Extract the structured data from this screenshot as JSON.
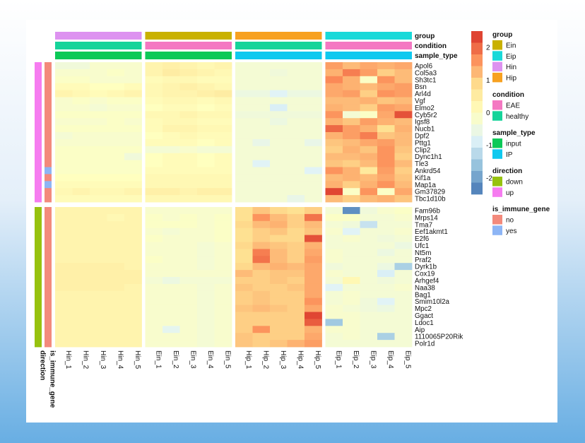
{
  "chart_data": {
    "type": "heatmap",
    "columns": [
      "Hin_1",
      "Hin_2",
      "Hin_3",
      "Hin_4",
      "Hin_5",
      "Ein_1",
      "Ein_2",
      "Ein_3",
      "Ein_4",
      "Ein_5",
      "Hip_1",
      "Hip_2",
      "Hip_3",
      "Hip_4",
      "Hip_5",
      "Eip_1",
      "Eip_2",
      "Eip_3",
      "Eip_4",
      "Eip_5"
    ],
    "column_groups": [
      "Hin",
      "Ein",
      "Hip",
      "Eip"
    ],
    "rows": [
      "Apol6",
      "Col5a3",
      "Sh3tc1",
      "Bsn",
      "Arl4d",
      "Vgf",
      "Elmo2",
      "Cyb5r2",
      "Igsf8",
      "Nucb1",
      "Dpf2",
      "Pttg1",
      "Clip2",
      "Dync1h1",
      "Tle3",
      "Ankrd54",
      "Kif1a",
      "Map1a",
      "Gm37829",
      "Tbc1d10b",
      "Fam96b",
      "Mrps14",
      "Tma7",
      "Eef1akmt1",
      "E2f6",
      "Ufc1",
      "Nt5m",
      "Praf2",
      "Dyrk1b",
      "Cox19",
      "Arhgef4",
      "Naa38",
      "Bag1",
      "Smim10l2a",
      "Mpc2",
      "Ggact",
      "Ldoc1",
      "Aip",
      "1110065P20Rik",
      "Polr1d"
    ],
    "row_direction": [
      "up",
      "up",
      "up",
      "up",
      "up",
      "up",
      "up",
      "up",
      "up",
      "up",
      "up",
      "up",
      "up",
      "up",
      "up",
      "up",
      "up",
      "up",
      "up",
      "up",
      "down",
      "down",
      "down",
      "down",
      "down",
      "down",
      "down",
      "down",
      "down",
      "down",
      "down",
      "down",
      "down",
      "down",
      "down",
      "down",
      "down",
      "down",
      "down",
      "down"
    ],
    "row_is_immune_gene": [
      "no",
      "no",
      "no",
      "no",
      "no",
      "no",
      "no",
      "no",
      "no",
      "no",
      "no",
      "no",
      "no",
      "no",
      "no",
      "yes",
      "no",
      "yes",
      "no",
      "no",
      "no",
      "no",
      "no",
      "no",
      "no",
      "no",
      "no",
      "no",
      "no",
      "no",
      "no",
      "no",
      "no",
      "no",
      "no",
      "no",
      "no",
      "no",
      "no",
      "no"
    ],
    "column_annotation_labels": [
      "group",
      "condition",
      "sample_type"
    ],
    "row_annotation_labels": [
      "direction",
      "is_immune_gene"
    ],
    "color_scale": {
      "min": -2.5,
      "max": 2.5,
      "ticks": [
        2,
        1,
        0,
        -1,
        -2
      ],
      "colors": [
        "#4575b4",
        "#91bfdb",
        "#e0f3f8",
        "#ffffbf",
        "#fee090",
        "#fc8d59",
        "#d73027"
      ]
    },
    "values": [
      [
        -0.4,
        -0.4,
        -0.2,
        -0.2,
        -0.2,
        0.3,
        0.4,
        0.3,
        0.2,
        0.3,
        -0.3,
        -0.3,
        -0.3,
        -0.3,
        -0.3,
        1.5,
        1.2,
        1.4,
        1.3,
        1.4
      ],
      [
        -0.2,
        -0.2,
        -0.2,
        -0.1,
        -0.2,
        0.3,
        0.5,
        0.4,
        0.3,
        0.2,
        -0.3,
        -0.3,
        -0.4,
        -0.3,
        -0.3,
        1.3,
        1.8,
        1.5,
        1.0,
        1.2
      ],
      [
        -0.1,
        -0.1,
        -0.2,
        -0.2,
        -0.2,
        0.1,
        0.2,
        0.2,
        0.1,
        0.1,
        -0.3,
        -0.3,
        -0.3,
        -0.3,
        -0.3,
        1.7,
        1.3,
        -0.1,
        1.6,
        1.2
      ],
      [
        0.1,
        0.1,
        0.0,
        0.0,
        0.1,
        0.2,
        0.3,
        0.4,
        0.3,
        0.2,
        -0.3,
        -0.3,
        -0.3,
        -0.3,
        -0.3,
        1.4,
        1.3,
        1.2,
        1.4,
        1.5
      ],
      [
        0.3,
        0.2,
        0.1,
        0.2,
        0.3,
        0.2,
        0.3,
        0.3,
        0.4,
        0.5,
        -0.5,
        -0.5,
        -0.8,
        -0.5,
        -0.5,
        1.4,
        1.5,
        1.0,
        1.6,
        1.5
      ],
      [
        -0.2,
        -0.1,
        -0.2,
        -0.1,
        -0.1,
        0.1,
        0.2,
        0.2,
        0.1,
        0.2,
        -0.3,
        -0.3,
        -0.3,
        -0.3,
        -0.3,
        1.2,
        1.2,
        1.3,
        1.1,
        1.2
      ],
      [
        -0.2,
        -0.2,
        -0.3,
        -0.2,
        -0.2,
        0.0,
        0.1,
        0.1,
        0.0,
        0.1,
        -0.3,
        -0.3,
        -0.9,
        -0.3,
        -0.3,
        1.3,
        1.2,
        1.0,
        1.5,
        1.4
      ],
      [
        -0.1,
        -0.1,
        -0.1,
        -0.1,
        -0.1,
        0.2,
        0.2,
        0.3,
        0.2,
        0.2,
        -0.4,
        -0.4,
        -0.4,
        -0.4,
        -0.4,
        1.6,
        -0.3,
        -0.1,
        1.4,
        2.2
      ],
      [
        -0.2,
        -0.2,
        -0.2,
        -0.1,
        -0.2,
        0.1,
        0.2,
        0.2,
        0.1,
        0.1,
        -0.3,
        -0.3,
        -0.5,
        -0.3,
        -0.3,
        1.3,
        1.1,
        1.5,
        1.3,
        1.2
      ],
      [
        -0.1,
        -0.1,
        -0.1,
        -0.1,
        -0.1,
        0.1,
        0.3,
        0.3,
        0.2,
        0.2,
        -0.3,
        -0.3,
        -0.3,
        -0.3,
        -0.3,
        2.0,
        1.5,
        1.3,
        0.8,
        1.3
      ],
      [
        -0.3,
        -0.2,
        -0.2,
        -0.2,
        -0.2,
        0.0,
        0.1,
        0.2,
        0.1,
        0.1,
        -0.3,
        -0.3,
        -0.3,
        -0.3,
        -0.3,
        1.3,
        1.5,
        1.8,
        1.1,
        1.2
      ],
      [
        -0.2,
        -0.2,
        -0.2,
        -0.2,
        -0.2,
        0.1,
        0.1,
        0.1,
        0.0,
        0.1,
        -0.3,
        -0.6,
        -0.3,
        -0.3,
        -0.6,
        1.1,
        1.2,
        1.4,
        1.5,
        1.2
      ],
      [
        -0.1,
        -0.1,
        -0.1,
        -0.1,
        -0.1,
        -0.3,
        -0.3,
        -0.2,
        -0.3,
        -0.3,
        -0.3,
        -0.3,
        -0.3,
        -0.3,
        -0.3,
        1.0,
        1.3,
        1.1,
        1.6,
        1.1
      ],
      [
        -0.1,
        -0.1,
        -0.1,
        -0.1,
        -0.4,
        0.0,
        0.1,
        0.1,
        0.0,
        0.1,
        -0.3,
        -0.3,
        -0.3,
        -0.3,
        -0.3,
        1.2,
        1.2,
        1.3,
        1.6,
        1.0
      ],
      [
        -0.1,
        -0.1,
        -0.1,
        -0.1,
        -0.1,
        0.0,
        0.1,
        0.1,
        0.0,
        0.1,
        -0.3,
        -0.8,
        -0.3,
        -0.3,
        -0.3,
        1.1,
        1.0,
        1.2,
        1.6,
        1.2
      ],
      [
        -0.1,
        -0.1,
        -0.1,
        -0.1,
        -0.1,
        0.1,
        0.1,
        0.1,
        0.1,
        0.1,
        -0.3,
        -0.3,
        -0.3,
        -0.3,
        -0.8,
        1.6,
        1.3,
        0.6,
        1.5,
        1.0
      ],
      [
        0.0,
        0.0,
        0.0,
        0.0,
        0.0,
        0.2,
        0.2,
        0.2,
        0.2,
        0.2,
        -0.3,
        -0.3,
        -0.3,
        -0.3,
        -0.3,
        1.2,
        1.3,
        1.2,
        1.4,
        1.1
      ],
      [
        0.1,
        0.1,
        0.1,
        0.1,
        0.1,
        0.2,
        0.2,
        0.2,
        0.2,
        0.2,
        -0.3,
        -0.3,
        -0.3,
        -0.3,
        -0.3,
        1.3,
        1.0,
        1.3,
        1.6,
        1.2
      ],
      [
        0.2,
        0.3,
        0.2,
        0.2,
        0.3,
        0.4,
        0.4,
        0.3,
        0.4,
        0.4,
        -0.3,
        -0.3,
        -0.3,
        -0.3,
        -0.3,
        2.3,
        -0.1,
        1.6,
        -0.1,
        1.4
      ],
      [
        0.1,
        0.1,
        0.1,
        0.1,
        0.1,
        0.2,
        0.2,
        0.2,
        0.2,
        0.2,
        -0.3,
        -0.3,
        -0.3,
        -0.6,
        -0.3,
        1.2,
        1.0,
        1.2,
        1.3,
        1.1
      ],
      [
        0.3,
        0.3,
        0.3,
        0.3,
        0.3,
        -0.2,
        -0.2,
        -0.2,
        -0.2,
        -0.2,
        0.8,
        1.1,
        0.9,
        0.8,
        1.0,
        -0.3,
        -2.2,
        -0.4,
        -0.2,
        -0.1
      ],
      [
        0.3,
        0.3,
        0.3,
        0.2,
        0.3,
        -0.1,
        -0.2,
        -0.1,
        -0.2,
        -0.1,
        0.8,
        1.6,
        1.2,
        1.0,
        1.9,
        -0.1,
        -0.1,
        -0.3,
        -0.3,
        -0.2
      ],
      [
        0.3,
        0.3,
        0.3,
        0.3,
        0.3,
        -0.1,
        -0.1,
        -0.1,
        -0.2,
        -0.1,
        0.9,
        1.2,
        1.3,
        1.0,
        1.2,
        -0.3,
        -0.4,
        -1.1,
        -0.3,
        -0.3
      ],
      [
        0.3,
        0.3,
        0.3,
        0.3,
        0.3,
        -0.2,
        -0.3,
        -0.2,
        -0.2,
        -0.1,
        0.8,
        1.0,
        1.1,
        0.9,
        1.1,
        -0.2,
        -0.8,
        -0.3,
        -0.3,
        -0.2
      ],
      [
        0.3,
        0.3,
        0.3,
        0.3,
        0.3,
        -0.1,
        -0.2,
        -0.2,
        -0.2,
        -0.1,
        0.8,
        1.0,
        0.9,
        0.9,
        2.2,
        -0.3,
        -0.2,
        -0.3,
        -0.4,
        -0.3
      ],
      [
        0.3,
        0.3,
        0.3,
        0.3,
        0.3,
        -0.2,
        -0.2,
        -0.2,
        -0.3,
        -0.2,
        0.9,
        1.2,
        1.1,
        1.0,
        1.3,
        -0.3,
        -0.3,
        -0.3,
        -0.3,
        -0.5
      ],
      [
        0.3,
        0.3,
        0.3,
        0.3,
        0.3,
        -0.2,
        -0.2,
        -0.2,
        -0.3,
        -0.2,
        0.8,
        1.8,
        1.2,
        1.0,
        1.4,
        -0.2,
        -0.3,
        -0.3,
        -0.5,
        -0.3
      ],
      [
        0.3,
        0.3,
        0.3,
        0.3,
        0.3,
        -0.1,
        -0.2,
        -0.2,
        -0.3,
        -0.2,
        0.8,
        1.9,
        1.2,
        1.0,
        1.5,
        -0.2,
        -0.3,
        -0.3,
        -0.3,
        -0.3
      ],
      [
        0.4,
        0.4,
        0.4,
        0.4,
        0.3,
        -0.2,
        -0.2,
        -0.2,
        -0.3,
        -0.2,
        0.9,
        1.2,
        1.3,
        1.2,
        1.4,
        -0.4,
        -0.3,
        -0.3,
        -0.5,
        -1.4
      ],
      [
        0.4,
        0.4,
        0.4,
        0.4,
        0.4,
        -0.2,
        -0.2,
        -0.2,
        -0.2,
        -0.2,
        1.2,
        1.0,
        1.1,
        1.1,
        1.4,
        -0.2,
        -0.3,
        -0.3,
        -0.9,
        -0.3
      ],
      [
        0.4,
        0.4,
        0.4,
        0.4,
        0.4,
        -0.3,
        -0.5,
        -0.3,
        -0.3,
        -0.3,
        1.0,
        1.0,
        1.1,
        1.0,
        1.4,
        -0.3,
        0.2,
        -0.3,
        -0.4,
        -0.3
      ],
      [
        0.4,
        0.4,
        0.4,
        0.4,
        0.3,
        -0.2,
        -0.2,
        -0.2,
        -0.3,
        -0.2,
        1.1,
        1.0,
        1.0,
        1.1,
        1.4,
        -0.8,
        -0.3,
        -0.3,
        -0.3,
        -0.2
      ],
      [
        0.3,
        0.3,
        0.3,
        0.3,
        0.3,
        -0.2,
        -0.2,
        -0.2,
        -0.3,
        -0.2,
        1.0,
        1.1,
        1.0,
        1.0,
        1.4,
        -0.3,
        -0.2,
        -0.3,
        -0.3,
        -0.3
      ],
      [
        0.3,
        0.3,
        0.3,
        0.3,
        0.3,
        -0.2,
        -0.2,
        -0.2,
        -0.3,
        -0.2,
        1.0,
        1.1,
        1.0,
        1.0,
        1.6,
        -0.3,
        -0.2,
        -0.4,
        -0.8,
        -0.3
      ],
      [
        0.3,
        0.3,
        0.3,
        0.3,
        0.3,
        -0.2,
        -0.2,
        -0.2,
        -0.3,
        -0.2,
        1.1,
        1.2,
        1.1,
        1.0,
        1.4,
        -0.2,
        -0.3,
        -0.4,
        -0.5,
        -0.3
      ],
      [
        0.3,
        0.3,
        0.3,
        0.3,
        0.3,
        -0.2,
        -0.2,
        -0.2,
        -0.3,
        -0.2,
        1.0,
        1.0,
        1.0,
        1.0,
        2.3,
        -0.2,
        -0.2,
        -0.3,
        -0.3,
        -0.3
      ],
      [
        0.3,
        0.3,
        0.3,
        0.3,
        0.3,
        -0.2,
        -0.2,
        -0.2,
        -0.3,
        -0.2,
        1.0,
        1.0,
        1.0,
        1.0,
        2.1,
        -1.5,
        -0.2,
        -0.3,
        -0.3,
        -0.3
      ],
      [
        0.3,
        0.3,
        0.3,
        0.3,
        0.3,
        -0.2,
        -0.7,
        -0.2,
        -0.3,
        -0.2,
        1.0,
        1.6,
        1.0,
        1.0,
        1.3,
        -0.2,
        -0.2,
        -0.3,
        -0.3,
        -0.3
      ],
      [
        0.3,
        0.3,
        0.3,
        0.3,
        0.3,
        -0.2,
        -0.2,
        -0.2,
        -0.3,
        -0.2,
        1.1,
        1.0,
        1.0,
        1.0,
        1.4,
        -0.3,
        -0.2,
        -0.3,
        -1.4,
        -0.3
      ],
      [
        0.3,
        0.3,
        0.3,
        0.3,
        0.3,
        -0.2,
        -0.2,
        -0.2,
        -0.3,
        -0.2,
        1.1,
        1.0,
        1.1,
        1.3,
        1.5,
        -0.3,
        -0.3,
        -0.3,
        -0.3,
        -0.3
      ]
    ]
  },
  "annotation_colors": {
    "group": {
      "Ein": "#c9b100",
      "Eip": "#19d9d9",
      "Hin": "#dd92f0",
      "Hip": "#f7a120"
    },
    "condition": {
      "EAE": "#f478c2",
      "healthy": "#16d49a"
    },
    "sample_type": {
      "input": "#0bc957",
      "IP": "#0fc9ef"
    },
    "direction": {
      "down": "#97c20f",
      "up": "#f67cf0"
    },
    "is_immune_gene": {
      "no": "#f38a7c",
      "yes": "#8db5f5"
    }
  },
  "legend": {
    "sections": [
      {
        "title": "group",
        "entries": [
          "Ein",
          "Eip",
          "Hin",
          "Hip"
        ]
      },
      {
        "title": "condition",
        "entries": [
          "EAE",
          "healthy"
        ]
      },
      {
        "title": "sample_type",
        "entries": [
          "input",
          "IP"
        ]
      },
      {
        "title": "direction",
        "entries": [
          "down",
          "up"
        ]
      },
      {
        "title": "is_immune_gene",
        "entries": [
          "no",
          "yes"
        ]
      }
    ]
  }
}
